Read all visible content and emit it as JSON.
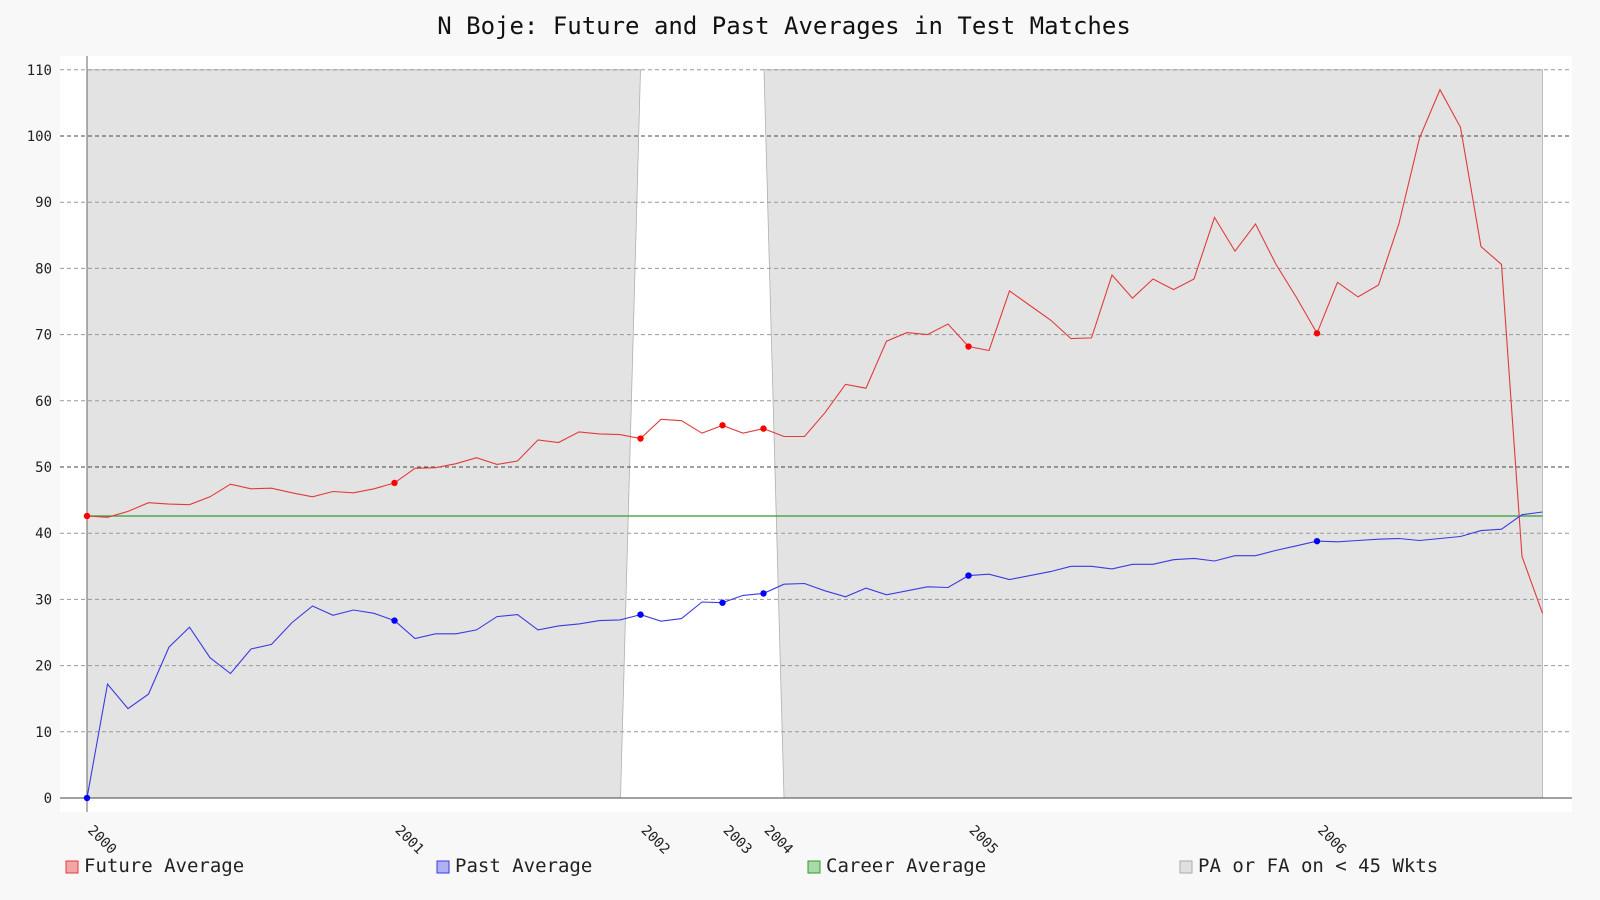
{
  "chart_data": {
    "type": "line",
    "title": "N Boje: Future and Past Averages in Test Matches",
    "xlabel": "",
    "ylabel": "",
    "ylim": [
      0,
      110
    ],
    "y_ticks": [
      0,
      10,
      20,
      30,
      40,
      50,
      60,
      70,
      80,
      90,
      100,
      110
    ],
    "x_year_labels": [
      {
        "label": "2000",
        "index": 0
      },
      {
        "label": "2001",
        "index": 15
      },
      {
        "label": "2002",
        "index": 27
      },
      {
        "label": "2003",
        "index": 31
      },
      {
        "label": "2004",
        "index": 33
      },
      {
        "label": "2005",
        "index": 43
      },
      {
        "label": "2006",
        "index": 60
      }
    ],
    "grid": true,
    "legend_position": "bottom",
    "colors": {
      "future": "#e23b3b",
      "past": "#3b3be2",
      "career": "#2e9d2e",
      "shade": "#e3e3e3"
    },
    "series": [
      {
        "name": "Future Average",
        "values": [
          42.6,
          42.4,
          43.3,
          44.6,
          44.4,
          44.3,
          45.5,
          47.4,
          46.7,
          46.8,
          46.1,
          45.5,
          46.3,
          46.1,
          46.7,
          47.6,
          49.8,
          49.9,
          50.5,
          51.4,
          50.4,
          50.9,
          54.1,
          53.7,
          55.3,
          55.0,
          54.9,
          54.3,
          57.2,
          57.0,
          55.1,
          56.3,
          55.1,
          55.8,
          54.6,
          54.6,
          58.2,
          62.5,
          61.9,
          69.0,
          70.3,
          70.0,
          71.6,
          68.2,
          67.6,
          76.6,
          74.4,
          72.2,
          69.4,
          69.5,
          79.0,
          75.5,
          78.4,
          76.8,
          78.4,
          87.7,
          82.6,
          86.7,
          80.6,
          75.6,
          70.2,
          77.9,
          75.7,
          77.5,
          86.8,
          99.7,
          107.0,
          101.3,
          83.3,
          80.6,
          36.5,
          27.9
        ],
        "markers": [
          0,
          15,
          27,
          31,
          33,
          43,
          60
        ]
      },
      {
        "name": "Past Average",
        "values": [
          0,
          17.2,
          13.5,
          15.7,
          22.8,
          25.8,
          21.2,
          18.8,
          22.5,
          23.2,
          26.5,
          29.0,
          27.6,
          28.4,
          27.9,
          26.8,
          24.1,
          24.8,
          24.8,
          25.4,
          27.4,
          27.7,
          25.4,
          26.0,
          26.3,
          26.8,
          26.9,
          27.7,
          26.7,
          27.1,
          29.6,
          29.5,
          30.6,
          30.9,
          32.3,
          32.4,
          31.3,
          30.4,
          31.7,
          30.7,
          31.3,
          31.9,
          31.8,
          33.6,
          33.8,
          33.0,
          33.6,
          34.2,
          35.0,
          35.0,
          34.6,
          35.3,
          35.3,
          36.0,
          36.2,
          35.8,
          36.6,
          36.6,
          37.4,
          38.1,
          38.8,
          38.7,
          38.9,
          39.1,
          39.2,
          38.9,
          39.2,
          39.5,
          40.4,
          40.6,
          42.8,
          43.2
        ],
        "markers": [
          0,
          15,
          27,
          31,
          33,
          43,
          60
        ]
      },
      {
        "name": "Career Average",
        "values": [
          42.6,
          42.6
        ]
      }
    ],
    "shade_legend": "PA or FA on < 45 Wkts",
    "unshaded_interval_indices": [
      27,
      34
    ]
  }
}
